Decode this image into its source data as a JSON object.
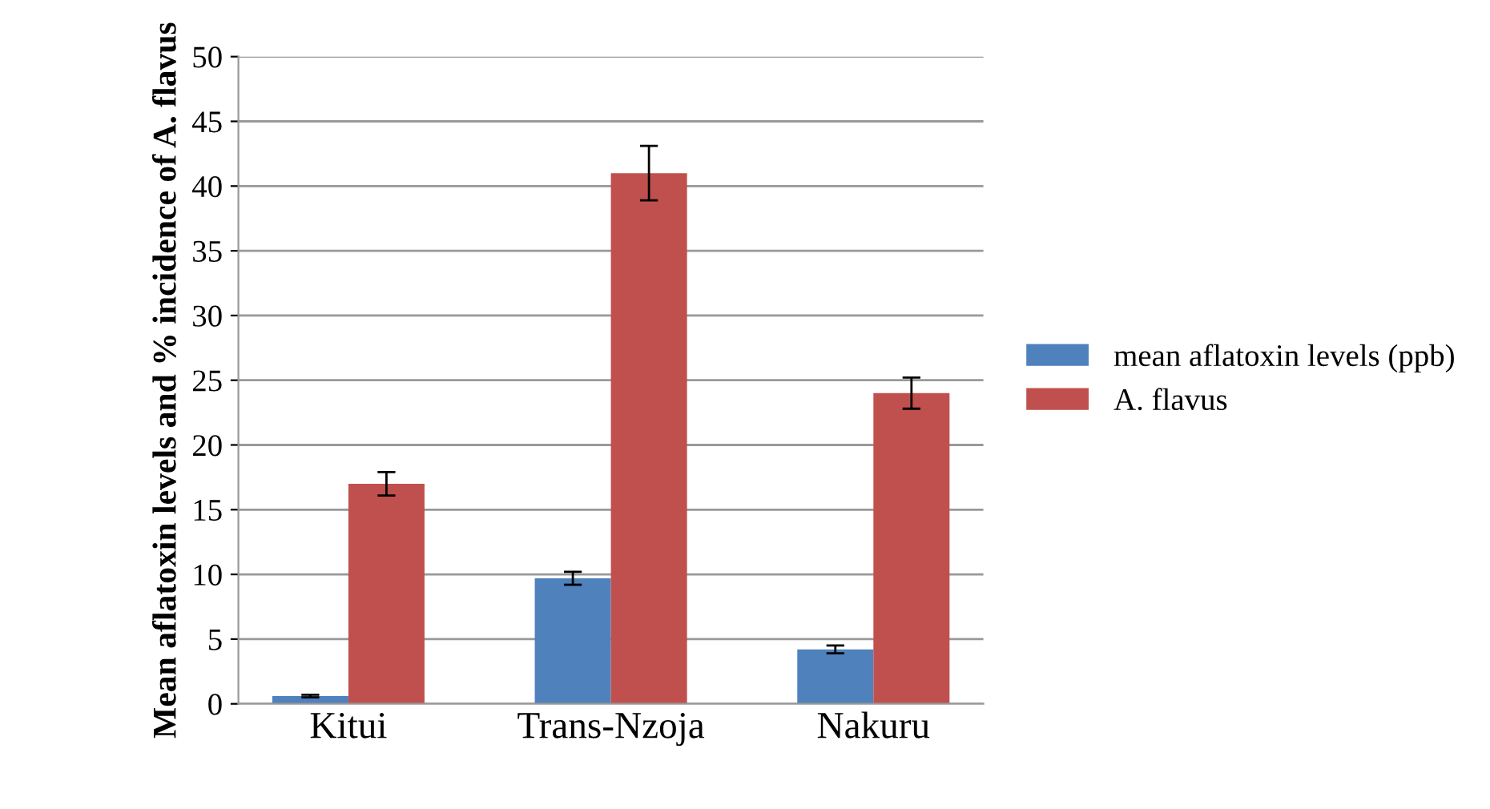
{
  "chart_data": {
    "type": "bar",
    "ylabel": "Mean aflatoxin levels and % incidence of A. flavus",
    "categories": [
      "Kitui",
      "Trans-Nzoja",
      "Nakuru"
    ],
    "series": [
      {
        "name": "mean aflatoxin levels (ppb)",
        "color": "#4f81bd",
        "values": [
          0.6,
          9.7,
          4.2
        ],
        "errors": [
          0.1,
          0.5,
          0.3
        ]
      },
      {
        "name": "A. flavus",
        "color": "#c0504d",
        "values": [
          17,
          41,
          24
        ],
        "errors": [
          0.9,
          2.1,
          1.2
        ]
      }
    ],
    "ylim": [
      0,
      50
    ],
    "yticks": [
      0,
      5,
      10,
      15,
      20,
      25,
      30,
      35,
      40,
      45,
      50
    ],
    "grid": "y",
    "legend": "right"
  }
}
